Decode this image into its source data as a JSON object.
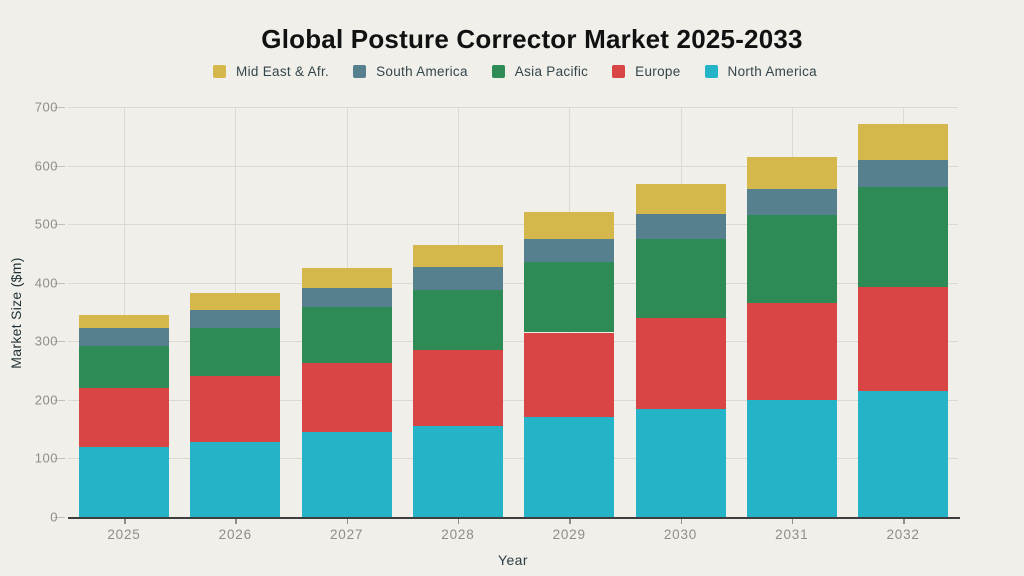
{
  "title": "Global Posture Corrector Market 2025-2033",
  "chart_data": {
    "type": "bar",
    "stacked": true,
    "title": "Global Posture Corrector Market 2025-2033",
    "xlabel": "Year",
    "ylabel": "Market Size ($m)",
    "ylim": [
      0,
      700
    ],
    "ytick_step": 100,
    "ytick_labels": [
      "0",
      "100",
      "200",
      "300",
      "400",
      "500",
      "600",
      "700"
    ],
    "grid": true,
    "legend_position": "top",
    "categories": [
      "2025",
      "2026",
      "2027",
      "2028",
      "2029",
      "2030",
      "2031",
      "2032"
    ],
    "series": [
      {
        "name": "North America",
        "color": "#24b3c7",
        "values": [
          120,
          128,
          145,
          155,
          170,
          185,
          200,
          215
        ]
      },
      {
        "name": "Europe",
        "color": "#d94544",
        "values": [
          100,
          112,
          118,
          130,
          145,
          155,
          165,
          177
        ]
      },
      {
        "name": "Asia Pacific",
        "color": "#2e8b56",
        "values": [
          72,
          82,
          95,
          102,
          120,
          135,
          150,
          172
        ]
      },
      {
        "name": "South America",
        "color": "#56808e",
        "values": [
          30,
          32,
          33,
          40,
          40,
          43,
          45,
          45
        ]
      },
      {
        "name": "Mid East & Afr.",
        "color": "#d4b84c",
        "values": [
          23,
          28,
          34,
          38,
          45,
          50,
          55,
          62
        ]
      }
    ],
    "totals": [
      345,
      382,
      425,
      465,
      520,
      568,
      615,
      671
    ],
    "legend_order": [
      "Mid East & Afr.",
      "South America",
      "Asia Pacific",
      "Europe",
      "North America"
    ]
  },
  "style_colors": {
    "background": "#f0efe9",
    "gridline": "#dbdad2",
    "axis_line": "#3e3e3e",
    "tick_label": "#8e8d89",
    "axis_title": "#24363d",
    "title_text": "#111111"
  }
}
